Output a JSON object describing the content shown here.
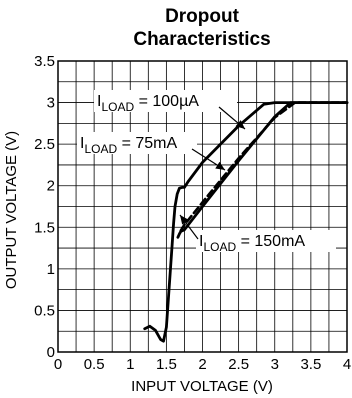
{
  "chart_data": {
    "type": "line",
    "title_lines": [
      "Dropout",
      "Characteristics"
    ],
    "xlabel": "INPUT  VOLTAGE (V)",
    "ylabel": "OUTPUT VOLTAGE (V)",
    "xlim": [
      0,
      4
    ],
    "ylim": [
      0,
      3.5
    ],
    "x_ticks": [
      "0",
      "0.5",
      "1",
      "1.5",
      "2",
      "2.5",
      "3",
      "3.5",
      "4"
    ],
    "y_ticks": [
      "0",
      "0.5",
      "1",
      "1.5",
      "2",
      "2.5",
      "3",
      "3.5"
    ],
    "grid": true,
    "series": [
      {
        "name": "I_LOAD = 100µA",
        "style": "solid",
        "x": [
          1.2,
          1.27,
          1.35,
          1.42,
          1.46,
          1.5,
          1.54,
          1.58,
          1.6,
          1.62,
          1.65,
          1.68,
          1.72,
          1.75,
          1.8,
          2.0,
          2.5,
          2.85,
          3.0,
          3.3,
          3.6,
          4.0
        ],
        "y": [
          0.28,
          0.31,
          0.26,
          0.15,
          0.13,
          0.3,
          0.8,
          1.3,
          1.55,
          1.75,
          1.9,
          1.97,
          1.98,
          1.98,
          2.05,
          2.28,
          2.72,
          2.98,
          3.0,
          3.0,
          3.0,
          3.0
        ]
      },
      {
        "name": "I_LOAD = 75mA",
        "style": "dashed",
        "x": [
          1.7,
          1.75,
          2.0,
          2.5,
          3.0,
          3.28,
          3.5,
          4.0
        ],
        "y": [
          1.46,
          1.53,
          1.8,
          2.33,
          2.82,
          3.0,
          3.0,
          3.0
        ]
      },
      {
        "name": "I_LOAD = 150mA",
        "style": "solid",
        "x": [
          1.66,
          1.68,
          1.7,
          1.75,
          2.0,
          2.5,
          3.0,
          3.22,
          3.5,
          4.0
        ],
        "y": [
          1.38,
          1.42,
          1.45,
          1.47,
          1.75,
          2.3,
          2.83,
          3.0,
          3.0,
          3.0
        ]
      }
    ],
    "annotations": [
      {
        "main": "I",
        "sub": "LOAD",
        "rest": " = 100µA"
      },
      {
        "main": "I",
        "sub": "LOAD",
        "rest": " = 75mA"
      },
      {
        "main": "I",
        "sub": "LOAD",
        "rest": " = 150mA"
      }
    ]
  }
}
